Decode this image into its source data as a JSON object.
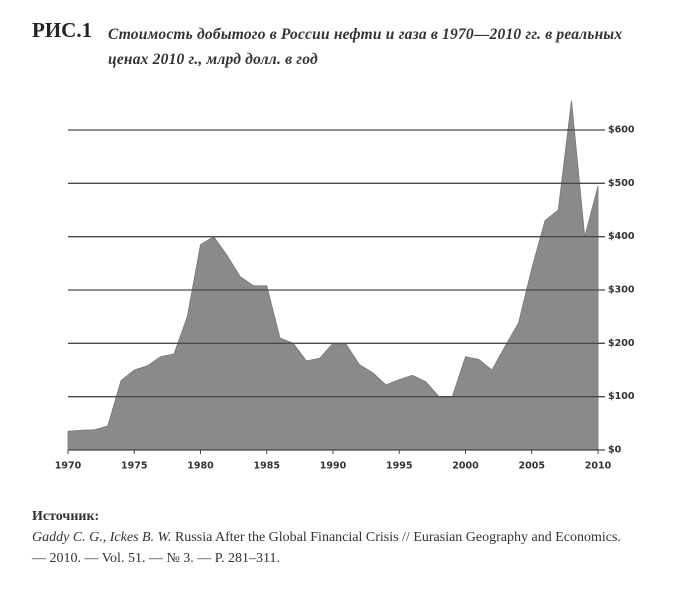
{
  "chart_data": {
    "type": "area",
    "figure_label": "РИС.1",
    "title": "Стоимость добытого в России нефти и газа в 1970—2010 гг. в реальных ценах 2010 г., млрд долл. в год",
    "x": [
      1970,
      1971,
      1972,
      1973,
      1974,
      1975,
      1976,
      1977,
      1978,
      1979,
      1980,
      1981,
      1982,
      1983,
      1984,
      1985,
      1986,
      1987,
      1988,
      1989,
      1990,
      1991,
      1992,
      1993,
      1994,
      1995,
      1996,
      1997,
      1998,
      1999,
      2000,
      2001,
      2002,
      2003,
      2004,
      2005,
      2006,
      2007,
      2008,
      2009,
      2010
    ],
    "values": [
      35,
      37,
      38,
      45,
      130,
      150,
      158,
      175,
      180,
      250,
      385,
      400,
      365,
      325,
      308,
      308,
      210,
      200,
      167,
      172,
      200,
      198,
      160,
      145,
      122,
      132,
      140,
      128,
      100,
      100,
      175,
      170,
      150,
      195,
      238,
      340,
      430,
      450,
      655,
      400,
      495
    ],
    "color": "#8a8a8a",
    "xlim": [
      1970,
      2010
    ],
    "xticks": [
      1970,
      1975,
      1980,
      1985,
      1990,
      1995,
      2000,
      2005,
      2010
    ],
    "ylim": [
      0,
      660
    ],
    "yticks": [
      {
        "value": 0,
        "label": "$0"
      },
      {
        "value": 100,
        "label": "$100"
      },
      {
        "value": 200,
        "label": "$200"
      },
      {
        "value": 300,
        "label": "$300"
      },
      {
        "value": 400,
        "label": "$400"
      },
      {
        "value": 500,
        "label": "$500"
      },
      {
        "value": 600,
        "label": "$600"
      }
    ],
    "grid": true
  },
  "source": {
    "label": "Источник:",
    "authors": "Gaddy C. G., Ickes B. W.",
    "text": " Russia After the Global Financial Crisis // Eurasian Geography and Economics. — 2010. — Vol. 51. — № 3. — P. 281–311."
  }
}
